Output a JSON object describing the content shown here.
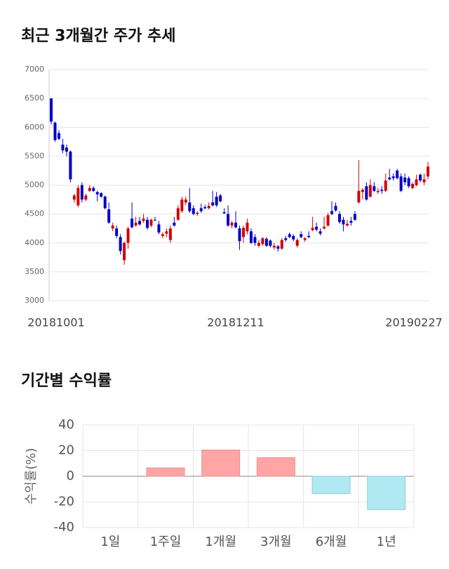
{
  "chart_data": [
    {
      "type": "candlestick",
      "title": "최근 3개월간 주가 추세",
      "up_color": "#d40000",
      "down_color": "#0000c8",
      "ylim": [
        3000,
        7000
      ],
      "yticks": [
        3000,
        3500,
        4000,
        4500,
        5000,
        5500,
        6000,
        6500,
        7000
      ],
      "grid": true,
      "categories": [
        "20181001",
        null,
        null,
        null,
        null,
        null,
        null,
        null,
        null,
        null,
        null,
        null,
        null,
        null,
        null,
        null,
        null,
        null,
        null,
        null,
        null,
        null,
        null,
        null,
        null,
        null,
        null,
        null,
        null,
        null,
        null,
        null,
        null,
        null,
        null,
        null,
        null,
        null,
        null,
        null,
        null,
        null,
        null,
        null,
        null,
        null,
        null,
        null,
        "20181211",
        null,
        null,
        null,
        null,
        null,
        null,
        null,
        null,
        null,
        null,
        null,
        null,
        null,
        null,
        null,
        null,
        null,
        null,
        null,
        null,
        null,
        null,
        null,
        null,
        null,
        null,
        null,
        null,
        null,
        null,
        null,
        null,
        null,
        null,
        null,
        null,
        null,
        null,
        null,
        null,
        null,
        null,
        null,
        null,
        null,
        null,
        null,
        null,
        null,
        "20190227"
      ],
      "ohlc": [
        [
          6500,
          6500,
          6050,
          6100
        ],
        [
          6080,
          6100,
          5750,
          5780
        ],
        [
          5900,
          5950,
          5780,
          5800
        ],
        [
          5700,
          5800,
          5550,
          5600
        ],
        [
          5650,
          5700,
          5500,
          5580
        ],
        [
          5580,
          5600,
          5050,
          5100
        ],
        [
          4750,
          4850,
          4700,
          4820
        ],
        [
          4650,
          5000,
          4620,
          4950
        ],
        [
          5000,
          5050,
          4700,
          4750
        ],
        [
          4750,
          4850,
          4720,
          4820
        ],
        [
          4900,
          5000,
          4880,
          4950
        ],
        [
          4950,
          4980,
          4880,
          4900
        ],
        [
          4880,
          4900,
          4720,
          4840
        ],
        [
          4860,
          4880,
          4780,
          4800
        ],
        [
          4800,
          4820,
          4580,
          4600
        ],
        [
          4580,
          4700,
          4330,
          4350
        ],
        [
          4250,
          4350,
          4200,
          4300
        ],
        [
          4250,
          4300,
          4080,
          4120
        ],
        [
          4100,
          4150,
          3800,
          3860
        ],
        [
          3700,
          4020,
          3620,
          4000
        ],
        [
          4000,
          4280,
          3900,
          4250
        ],
        [
          4420,
          4700,
          4250,
          4270
        ],
        [
          4300,
          4450,
          4280,
          4350
        ],
        [
          4380,
          4450,
          4300,
          4320
        ],
        [
          4380,
          4500,
          4350,
          4420
        ],
        [
          4400,
          4450,
          4230,
          4260
        ],
        [
          4300,
          4420,
          4270,
          4400
        ],
        [
          4400,
          4450,
          4380,
          4390
        ],
        [
          4320,
          4380,
          4150,
          4180
        ],
        [
          4120,
          4180,
          4080,
          4150
        ],
        [
          4160,
          4250,
          4100,
          4200
        ],
        [
          4050,
          4300,
          4000,
          4250
        ],
        [
          4350,
          4450,
          4280,
          4300
        ],
        [
          4400,
          4650,
          4380,
          4600
        ],
        [
          4550,
          4800,
          4520,
          4750
        ],
        [
          4700,
          4800,
          4650,
          4750
        ],
        [
          4700,
          4950,
          4520,
          4550
        ],
        [
          4600,
          4650,
          4480,
          4500
        ],
        [
          4500,
          4550,
          4470,
          4520
        ],
        [
          4600,
          4680,
          4520,
          4550
        ],
        [
          4620,
          4660,
          4580,
          4600
        ],
        [
          4600,
          4700,
          4580,
          4640
        ],
        [
          4700,
          4900,
          4630,
          4650
        ],
        [
          4800,
          4880,
          4620,
          4650
        ],
        [
          4820,
          4850,
          4700,
          4720
        ],
        [
          4530,
          4600,
          4500,
          4510
        ],
        [
          4500,
          4650,
          4280,
          4300
        ],
        [
          4300,
          4380,
          4250,
          4350
        ],
        [
          4350,
          4550,
          4250,
          4270
        ],
        [
          4250,
          4300,
          3880,
          4030
        ],
        [
          4100,
          4300,
          4000,
          4260
        ],
        [
          4200,
          4420,
          4150,
          4350
        ],
        [
          4200,
          4250,
          3980,
          4000
        ],
        [
          4100,
          4150,
          3950,
          4000
        ],
        [
          3950,
          4050,
          3920,
          4000
        ],
        [
          3980,
          4100,
          3950,
          4080
        ],
        [
          4070,
          4100,
          3930,
          3950
        ],
        [
          4040,
          4060,
          3920,
          3950
        ],
        [
          3920,
          4000,
          3880,
          3950
        ],
        [
          3940,
          3960,
          3850,
          3900
        ],
        [
          3900,
          4080,
          3880,
          4050
        ],
        [
          4080,
          4120,
          4020,
          4050
        ],
        [
          4150,
          4180,
          4080,
          4100
        ],
        [
          4120,
          4150,
          4030,
          4060
        ],
        [
          3950,
          4080,
          3920,
          4050
        ],
        [
          4150,
          4200,
          4080,
          4100
        ],
        [
          4050,
          4100,
          4020,
          4080
        ],
        [
          4120,
          4200,
          4080,
          4100
        ],
        [
          4220,
          4450,
          4200,
          4260
        ],
        [
          4280,
          4350,
          4200,
          4230
        ],
        [
          4200,
          4250,
          4130,
          4160
        ],
        [
          4250,
          4450,
          4230,
          4280
        ],
        [
          4300,
          4520,
          4280,
          4480
        ],
        [
          4550,
          4720,
          4480,
          4500
        ],
        [
          4640,
          4700,
          4540,
          4560
        ],
        [
          4500,
          4550,
          4330,
          4360
        ],
        [
          4400,
          4450,
          4200,
          4320
        ],
        [
          4300,
          4400,
          4280,
          4330
        ],
        [
          4380,
          4450,
          4300,
          4350
        ],
        [
          4500,
          4550,
          4380,
          4400
        ],
        [
          4700,
          5430,
          4680,
          4900
        ],
        [
          4880,
          4950,
          4750,
          4920
        ],
        [
          4980,
          5050,
          4730,
          4750
        ],
        [
          4800,
          5100,
          4780,
          5000
        ],
        [
          4980,
          5050,
          4880,
          4900
        ],
        [
          4880,
          4950,
          4850,
          4900
        ],
        [
          4920,
          4980,
          4850,
          4900
        ],
        [
          4900,
          5200,
          4880,
          5080
        ],
        [
          5130,
          5280,
          5080,
          5100
        ],
        [
          5150,
          5200,
          5080,
          5120
        ],
        [
          5250,
          5280,
          5100,
          5120
        ],
        [
          5150,
          5200,
          4880,
          4900
        ],
        [
          5130,
          5200,
          5000,
          5050
        ],
        [
          5120,
          5150,
          4950,
          4980
        ],
        [
          4950,
          5050,
          4930,
          5020
        ],
        [
          5000,
          5180,
          4980,
          5100
        ],
        [
          5180,
          5200,
          5050,
          5080
        ],
        [
          5050,
          5200,
          5000,
          5100
        ],
        [
          5150,
          5400,
          5100,
          5320
        ]
      ]
    },
    {
      "type": "bar",
      "title": "기간별 수익률",
      "y_label": "수익률(%)",
      "categories": [
        "1일",
        "1주일",
        "1개월",
        "3개월",
        "6개월",
        "1년"
      ],
      "values": [
        0,
        6.5,
        20.5,
        14.5,
        -13.5,
        -26
      ],
      "colors": [
        "#ffa5a5",
        "#ffa5a5",
        "#ffa5a5",
        "#ffa5a5",
        "#b1e9f3",
        "#b1e9f3"
      ],
      "ylim": [
        -40,
        40
      ],
      "yticks": [
        -40,
        -20,
        0,
        20,
        40
      ],
      "grid": true
    }
  ]
}
